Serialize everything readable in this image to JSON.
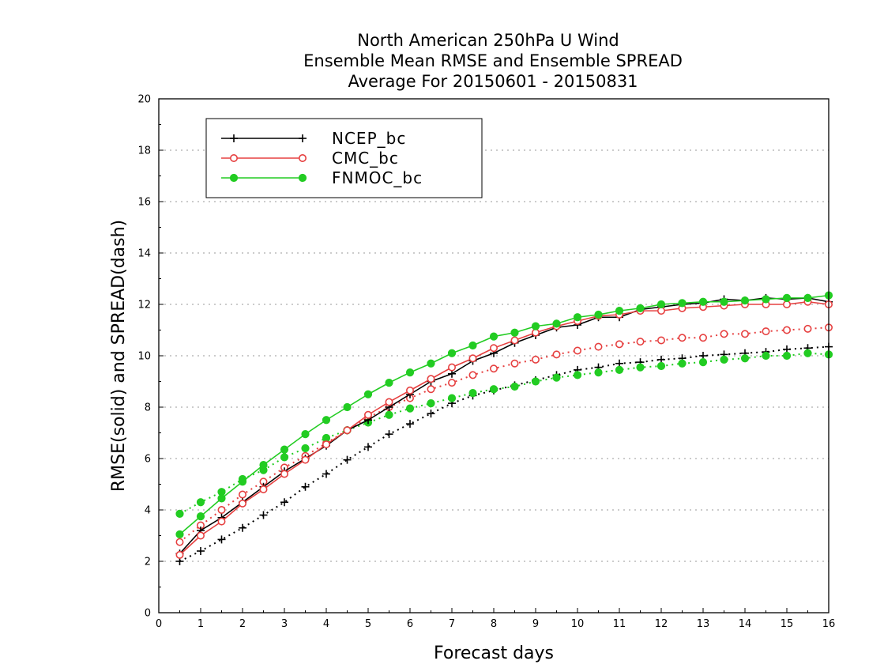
{
  "chart_data": {
    "type": "line",
    "title": [
      "North American 250hPa U Wind",
      "Ensemble Mean RMSE and Ensemble SPREAD",
      "Average For 20150601 - 20150831"
    ],
    "xlabel": "Forecast days",
    "ylabel": "RMSE(solid) and SPREAD(dash)",
    "xlim": [
      0,
      16
    ],
    "ylim": [
      0,
      20
    ],
    "xticks": [
      0,
      1,
      2,
      3,
      4,
      5,
      6,
      7,
      8,
      9,
      10,
      11,
      12,
      13,
      14,
      15,
      16
    ],
    "yticks": [
      0,
      2,
      4,
      6,
      8,
      10,
      12,
      14,
      16,
      18,
      20
    ],
    "grid": "horizontal dotted",
    "legend_position": "top-left",
    "x": [
      0.5,
      1,
      1.5,
      2,
      2.5,
      3,
      3.5,
      4,
      4.5,
      5,
      5.5,
      6,
      6.5,
      7,
      7.5,
      8,
      8.5,
      9,
      9.5,
      10,
      10.5,
      11,
      11.5,
      12,
      12.5,
      13,
      13.5,
      14,
      14.5,
      15,
      15.5,
      16
    ],
    "series": [
      {
        "name": "NCEP_bc",
        "color": "#000000",
        "marker": "plus",
        "rmse": [
          2.3,
          3.2,
          3.7,
          4.3,
          4.9,
          5.5,
          6.0,
          6.5,
          7.1,
          7.5,
          8.0,
          8.5,
          9.0,
          9.3,
          9.8,
          10.1,
          10.5,
          10.8,
          11.1,
          11.2,
          11.5,
          11.5,
          11.8,
          11.9,
          12.0,
          12.05,
          12.2,
          12.15,
          12.25,
          12.2,
          12.25,
          12.1
        ],
        "spread": [
          2.0,
          2.4,
          2.85,
          3.3,
          3.8,
          4.3,
          4.9,
          5.4,
          5.95,
          6.45,
          6.95,
          7.35,
          7.75,
          8.15,
          8.45,
          8.65,
          8.85,
          9.05,
          9.25,
          9.45,
          9.55,
          9.7,
          9.75,
          9.85,
          9.9,
          10.0,
          10.05,
          10.1,
          10.15,
          10.25,
          10.3,
          10.35
        ]
      },
      {
        "name": "CMC_bc",
        "color": "#e64040",
        "marker": "open-circle",
        "rmse": [
          2.25,
          3.0,
          3.55,
          4.25,
          4.8,
          5.4,
          5.95,
          6.55,
          7.1,
          7.7,
          8.2,
          8.65,
          9.1,
          9.55,
          9.9,
          10.3,
          10.6,
          10.9,
          11.15,
          11.35,
          11.55,
          11.6,
          11.75,
          11.75,
          11.85,
          11.9,
          11.95,
          12.0,
          12.0,
          12.0,
          12.1,
          12.0
        ],
        "spread": [
          2.75,
          3.4,
          4.0,
          4.6,
          5.1,
          5.65,
          6.1,
          6.6,
          7.1,
          7.6,
          8.0,
          8.35,
          8.7,
          8.95,
          9.25,
          9.5,
          9.7,
          9.85,
          10.05,
          10.2,
          10.35,
          10.45,
          10.55,
          10.6,
          10.7,
          10.7,
          10.85,
          10.85,
          10.95,
          11.0,
          11.05,
          11.1
        ]
      },
      {
        "name": "FNMOC_bc",
        "color": "#22cc22",
        "marker": "filled-circle",
        "rmse": [
          3.05,
          3.75,
          4.45,
          5.1,
          5.75,
          6.35,
          6.95,
          7.5,
          8.0,
          8.5,
          8.95,
          9.35,
          9.7,
          10.1,
          10.4,
          10.75,
          10.9,
          11.15,
          11.25,
          11.5,
          11.6,
          11.75,
          11.85,
          12.0,
          12.05,
          12.1,
          12.1,
          12.15,
          12.2,
          12.25,
          12.25,
          12.35
        ],
        "spread": [
          3.85,
          4.3,
          4.7,
          5.2,
          5.55,
          6.05,
          6.4,
          6.8,
          7.1,
          7.4,
          7.7,
          7.95,
          8.15,
          8.35,
          8.55,
          8.7,
          8.8,
          9.0,
          9.15,
          9.25,
          9.35,
          9.45,
          9.55,
          9.6,
          9.7,
          9.75,
          9.85,
          9.9,
          10.0,
          10.0,
          10.1,
          10.05
        ]
      }
    ]
  }
}
